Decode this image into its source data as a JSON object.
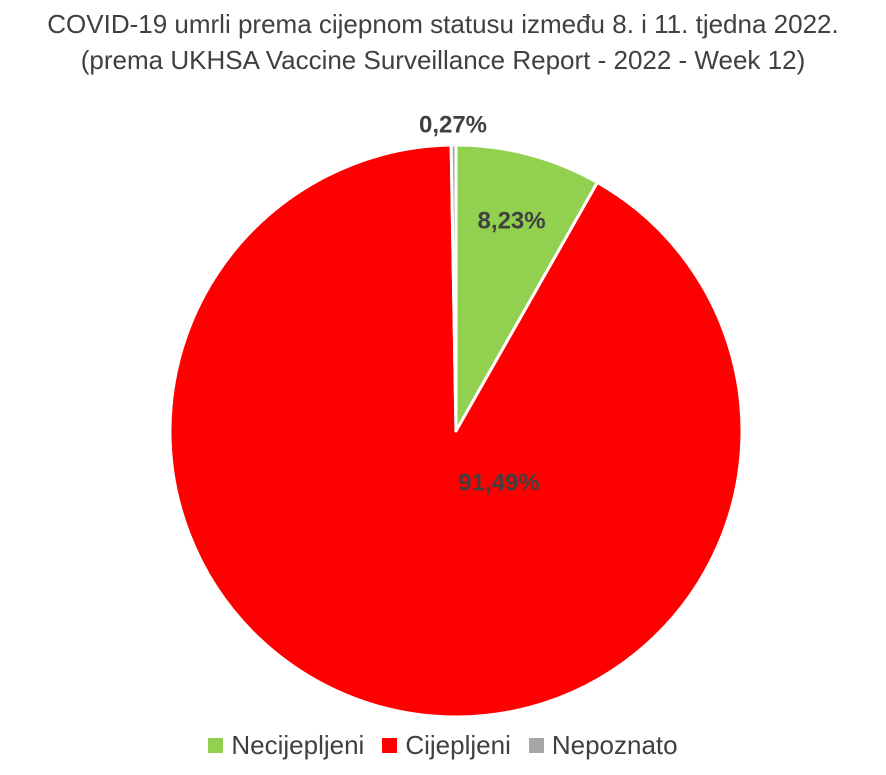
{
  "chart_data": {
    "type": "pie",
    "title": "COVID-19 umrli prema cijepnom statusu između 8. i 11. tjedna 2022.",
    "subtitle": "(prema UKHSA Vaccine Surveillance Report - 2022 - Week 12)",
    "categories": [
      "Necijepljeni",
      "Cijepljeni",
      "Nepoznato"
    ],
    "values": [
      8.23,
      91.49,
      0.27
    ],
    "data_labels": [
      "8,23%",
      "91,49%",
      "0,27%"
    ],
    "colors": [
      "#92D050",
      "#FF0000",
      "#A6A6A6"
    ],
    "legend_position": "bottom"
  }
}
